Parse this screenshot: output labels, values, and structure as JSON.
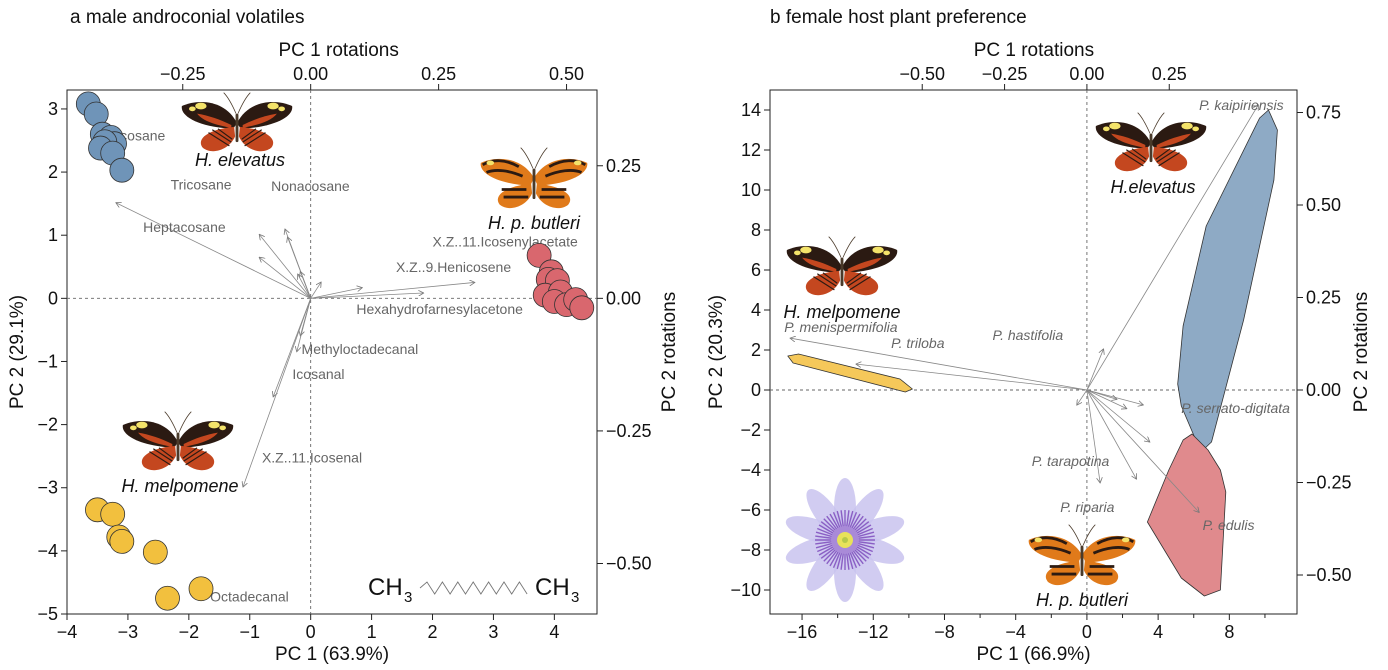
{
  "chart_data": [
    {
      "type": "scatter",
      "panel_title": "a male androconial volatiles",
      "xlabel": "PC 1 (63.9%)",
      "ylabel": "PC 2 (29.1%)",
      "xlim": [
        -4,
        4.7
      ],
      "ylim": [
        -5,
        3.3
      ],
      "xticks": [
        -4,
        -3,
        -2,
        -1,
        0,
        1,
        2,
        3,
        4
      ],
      "yticks": [
        -5,
        -4,
        -3,
        -2,
        -1,
        0,
        1,
        2,
        3
      ],
      "top_axis_label": "PC 1 rotations",
      "top_axis_ticks": [
        "−0.25",
        "0.00",
        "0.25",
        "0.50"
      ],
      "top_axis_values": [
        -0.25,
        0,
        0.25,
        0.5
      ],
      "right_axis_label": "PC 2 rotations",
      "right_axis_ticks": [
        "0.25",
        "0.00",
        "−0.25",
        "−0.50"
      ],
      "right_axis_values": [
        0.25,
        0,
        -0.25,
        -0.5
      ],
      "rotation_scale": 8.4,
      "series": [
        {
          "name": "H. elevatus",
          "color": "#6f94b8",
          "points": [
            [
              -3.65,
              3.08
            ],
            [
              -3.52,
              2.92
            ],
            [
              -3.42,
              2.6
            ],
            [
              -3.28,
              2.55
            ],
            [
              -3.22,
              2.45
            ],
            [
              -3.38,
              2.48
            ],
            [
              -3.45,
              2.38
            ],
            [
              -3.25,
              2.3
            ],
            [
              -3.1,
              2.03
            ]
          ]
        },
        {
          "name": "H. p. butleri",
          "color": "#d9676e",
          "points": [
            [
              3.75,
              0.68
            ],
            [
              3.95,
              0.42
            ],
            [
              3.9,
              0.3
            ],
            [
              4.05,
              0.28
            ],
            [
              3.85,
              0.05
            ],
            [
              4.1,
              0.1
            ],
            [
              4.0,
              -0.05
            ],
            [
              4.2,
              -0.1
            ],
            [
              4.35,
              -0.02
            ],
            [
              4.45,
              -0.15
            ]
          ]
        },
        {
          "name": "H. melpomene",
          "color": "#f2c03e",
          "points": [
            [
              -3.5,
              -3.35
            ],
            [
              -3.25,
              -3.42
            ],
            [
              -3.15,
              -3.78
            ],
            [
              -3.1,
              -3.85
            ],
            [
              -2.55,
              -4.02
            ],
            [
              -2.35,
              -4.75
            ],
            [
              -1.8,
              -4.6
            ]
          ]
        }
      ],
      "loadings": [
        {
          "name": "Henicosane",
          "x": -0.38,
          "y": 0.18
        },
        {
          "name": "Tricosane",
          "x": -0.1,
          "y": 0.12
        },
        {
          "name": "Heptacosane",
          "x": -0.1,
          "y": 0.077
        },
        {
          "name": "Nonacosane",
          "x": -0.045,
          "y": 0.115
        },
        {
          "name": "",
          "x": -0.05,
          "y": 0.13
        },
        {
          "name": "",
          "x": -0.025,
          "y": 0.045
        },
        {
          "name": "",
          "x": -0.02,
          "y": 0.05
        },
        {
          "name": "",
          "x": 0.02,
          "y": 0.03
        },
        {
          "name": "X.Z..11.Icosenylacetate",
          "x": 0.32,
          "y": 0.03
        },
        {
          "name": "X.Z..9.Henicosene",
          "x": 0.1,
          "y": 0.02
        },
        {
          "name": "Hexahydrofarnesylacetone",
          "x": 0.22,
          "y": 0.01
        },
        {
          "name": "Methyloctadecanal",
          "x": -0.02,
          "y": -0.07
        },
        {
          "name": "Icosanal",
          "x": -0.027,
          "y": -0.1
        },
        {
          "name": "X.Z..11.Icosenal",
          "x": -0.073,
          "y": -0.185
        },
        {
          "name": "Octadecanal",
          "x": -0.132,
          "y": -0.355
        }
      ],
      "annotations": {
        "chem_left": "CH",
        "chem_right": "CH",
        "chem_sub": "3"
      }
    },
    {
      "type": "scatter",
      "panel_title": "b female host plant preference",
      "xlabel": "PC 1 (66.9%)",
      "ylabel": "PC 2 (20.3%)",
      "xlim": [
        -17.8,
        11.8
      ],
      "ylim": [
        -11.2,
        15
      ],
      "xticks": [
        -16,
        -12,
        -8,
        -4,
        0,
        4,
        8
      ],
      "yticks": [
        -10,
        -8,
        -6,
        -4,
        -2,
        0,
        2,
        4,
        6,
        8,
        10,
        12,
        14
      ],
      "top_axis_label": "PC 1 rotations",
      "top_axis_ticks": [
        "−0.50",
        "−0.25",
        "0.00",
        "0.25"
      ],
      "top_axis_values": [
        -0.5,
        -0.25,
        0,
        0.25
      ],
      "right_axis_label": "PC 2 rotations",
      "right_axis_ticks": [
        "0.75",
        "0.50",
        "0.25",
        "0.00",
        "−0.25",
        "−0.50"
      ],
      "right_axis_values": [
        0.75,
        0.5,
        0.25,
        0,
        -0.25,
        -0.5
      ],
      "rotation_scale": 18.5,
      "hulls": [
        {
          "name": "H. melpomene",
          "color": "#f5c85a",
          "points": [
            [
              -16.8,
              1.7
            ],
            [
              -16.5,
              1.35
            ],
            [
              -10.2,
              -0.1
            ],
            [
              -9.8,
              0.05
            ],
            [
              -10.5,
              0.55
            ],
            [
              -16.2,
              1.8
            ]
          ]
        },
        {
          "name": "H. elevatus",
          "color": "#8eaac5",
          "points": [
            [
              10.2,
              14.0
            ],
            [
              9.7,
              13.6
            ],
            [
              6.7,
              8.2
            ],
            [
              5.4,
              3.2
            ],
            [
              5.1,
              0.3
            ],
            [
              5.3,
              -0.8
            ],
            [
              6.4,
              -3.1
            ],
            [
              7.0,
              -2.6
            ],
            [
              8.8,
              3.5
            ],
            [
              10.5,
              10.5
            ],
            [
              10.7,
              13.0
            ]
          ]
        },
        {
          "name": "H. p. butleri",
          "color": "#e08a8d",
          "points": [
            [
              5.9,
              -2.2
            ],
            [
              5.4,
              -2.5
            ],
            [
              4.6,
              -4.0
            ],
            [
              3.4,
              -6.6
            ],
            [
              5.3,
              -9.4
            ],
            [
              6.6,
              -10.3
            ],
            [
              7.5,
              -10.0
            ],
            [
              7.8,
              -5.1
            ],
            [
              7.5,
              -4.0
            ],
            [
              6.8,
              -3.0
            ]
          ]
        }
      ],
      "loadings": [
        {
          "name": "P. kaipiriensis",
          "x": 0.52,
          "y": 0.77
        },
        {
          "name": "P. menispermifolia",
          "x": -0.9,
          "y": 0.14
        },
        {
          "name": "P. triloba",
          "x": -0.7,
          "y": 0.07
        },
        {
          "name": "P. hastifolia",
          "x": 0.05,
          "y": 0.11
        },
        {
          "name": "P. serrato-digitata",
          "x": 0.17,
          "y": -0.04
        },
        {
          "name": "P. tarapotina",
          "x": 0.19,
          "y": -0.14
        },
        {
          "name": "P. riparia",
          "x": 0.15,
          "y": -0.24
        },
        {
          "name": "P. edulis",
          "x": 0.34,
          "y": -0.33
        },
        {
          "name": "",
          "x": 0.04,
          "y": -0.25
        },
        {
          "name": "",
          "x": -0.03,
          "y": -0.04
        },
        {
          "name": "",
          "x": 0.09,
          "y": -0.025
        },
        {
          "name": "",
          "x": 0.12,
          "y": -0.05
        }
      ]
    }
  ],
  "butterflies": {
    "a_elevatus": "H. elevatus",
    "a_butleri": "H. p. butleri",
    "a_melpomene": "H. melpomene",
    "b_elevatus": "H.elevatus",
    "b_melpomene": "H. melpomene",
    "b_butleri": "H. p. butleri"
  },
  "icons": [
    "butterfly-icon",
    "passionflower-icon",
    "molecule-chain-icon"
  ],
  "colors": {
    "elevatus": "#6f94b8",
    "butleri": "#d9676e",
    "melpomene": "#f2c03e",
    "arrow": "#888888"
  }
}
